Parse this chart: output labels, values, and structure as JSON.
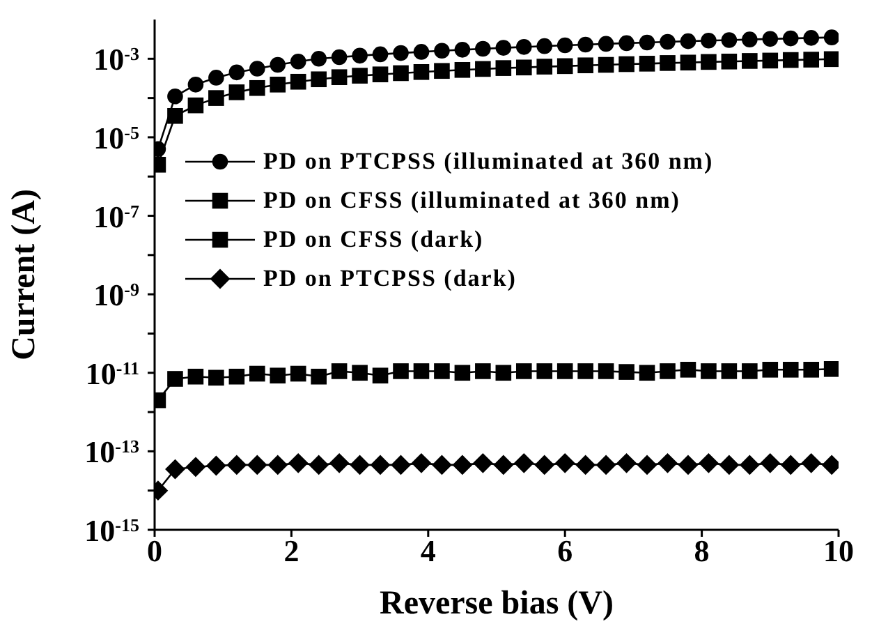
{
  "chart_data": {
    "type": "line",
    "xlabel": "Reverse bias (V)",
    "ylabel": "Current (A)",
    "x": [
      0.05,
      0.3,
      0.6,
      0.9,
      1.2,
      1.5,
      1.8,
      2.1,
      2.4,
      2.7,
      3.0,
      3.3,
      3.6,
      3.9,
      4.2,
      4.5,
      4.8,
      5.1,
      5.4,
      5.7,
      6.0,
      6.3,
      6.6,
      6.9,
      7.2,
      7.5,
      7.8,
      8.1,
      8.4,
      8.7,
      9.0,
      9.3,
      9.6,
      9.9
    ],
    "series": [
      {
        "name": "PD on PTCPSS (illuminated at 360 nm)",
        "color": "#000000",
        "marker": "circle",
        "values": [
          5e-06,
          0.00011,
          0.00022,
          0.00033,
          0.00045,
          0.00056,
          0.0007,
          0.00085,
          0.001,
          0.0011,
          0.0012,
          0.0013,
          0.0014,
          0.0015,
          0.0016,
          0.0017,
          0.0018,
          0.0019,
          0.002,
          0.0021,
          0.0022,
          0.0023,
          0.0024,
          0.0025,
          0.0026,
          0.0027,
          0.0028,
          0.0029,
          0.003,
          0.0031,
          0.0032,
          0.0033,
          0.0034,
          0.0035
        ]
      },
      {
        "name": "PD on CFSS (illuminated at 360 nm)",
        "color": "#000000",
        "marker": "square",
        "values": [
          2e-06,
          3.5e-05,
          6.5e-05,
          0.0001,
          0.00014,
          0.00018,
          0.00022,
          0.00026,
          0.0003,
          0.00034,
          0.00037,
          0.0004,
          0.00043,
          0.00046,
          0.00049,
          0.00052,
          0.00055,
          0.00058,
          0.0006,
          0.00063,
          0.00065,
          0.00068,
          0.0007,
          0.00073,
          0.00075,
          0.00078,
          0.0008,
          0.00083,
          0.00085,
          0.00088,
          0.0009,
          0.00093,
          0.00095,
          0.00098
        ]
      },
      {
        "name": "PD on CFSS (dark)",
        "color": "#000000",
        "marker": "square",
        "values": [
          2e-12,
          7e-12,
          8e-12,
          7.5e-12,
          8e-12,
          9.5e-12,
          8.5e-12,
          9.5e-12,
          8e-12,
          1.1e-11,
          1e-11,
          8.5e-12,
          1.1e-11,
          1.1e-11,
          1.1e-11,
          1e-11,
          1.1e-11,
          1e-11,
          1.1e-11,
          1.1e-11,
          1.1e-11,
          1.1e-11,
          1.1e-11,
          1.05e-11,
          1e-11,
          1.1e-11,
          1.2e-11,
          1.1e-11,
          1.1e-11,
          1.1e-11,
          1.2e-11,
          1.2e-11,
          1.2e-11,
          1.25e-11
        ]
      },
      {
        "name": "PD on PTCPSS (dark)",
        "color": "#000000",
        "marker": "diamond",
        "values": [
          1e-14,
          3.5e-14,
          4e-14,
          4.3e-14,
          4.5e-14,
          4.5e-14,
          4.5e-14,
          5e-14,
          4.5e-14,
          5e-14,
          4.5e-14,
          4.5e-14,
          4.5e-14,
          5e-14,
          4.5e-14,
          4.5e-14,
          5e-14,
          4.5e-14,
          5e-14,
          4.5e-14,
          5e-14,
          4.5e-14,
          4.5e-14,
          5e-14,
          4.5e-14,
          5e-14,
          4.5e-14,
          5e-14,
          4.5e-14,
          4.5e-14,
          5e-14,
          4.5e-14,
          5e-14,
          4.5e-14
        ]
      }
    ],
    "xlim": [
      0,
      10
    ],
    "xticks": [
      0,
      2,
      4,
      6,
      8,
      10
    ],
    "log": "y",
    "ylim": [
      1e-15,
      0.01
    ],
    "yticks": [
      {
        "value": 1e-15,
        "label": "10$^{-15}$"
      },
      {
        "value": 1e-14,
        "label": null
      },
      {
        "value": 1e-13,
        "label": "10$^{-13}$"
      },
      {
        "value": 1e-12,
        "label": null
      },
      {
        "value": 1e-11,
        "label": "10$^{-11}$"
      },
      {
        "value": 1e-10,
        "label": null
      },
      {
        "value": 1e-09,
        "label": "10$^{-9}$"
      },
      {
        "value": 1e-08,
        "label": null
      },
      {
        "value": 1e-07,
        "label": "10$^{-7}$"
      },
      {
        "value": 1e-06,
        "label": null
      },
      {
        "value": 1e-05,
        "label": "10$^{-5}$"
      },
      {
        "value": 0.0001,
        "label": null
      },
      {
        "value": 0.001,
        "label": "10$^{-3}$"
      }
    ],
    "grid": false,
    "legend": "left",
    "line_style": "solid"
  }
}
